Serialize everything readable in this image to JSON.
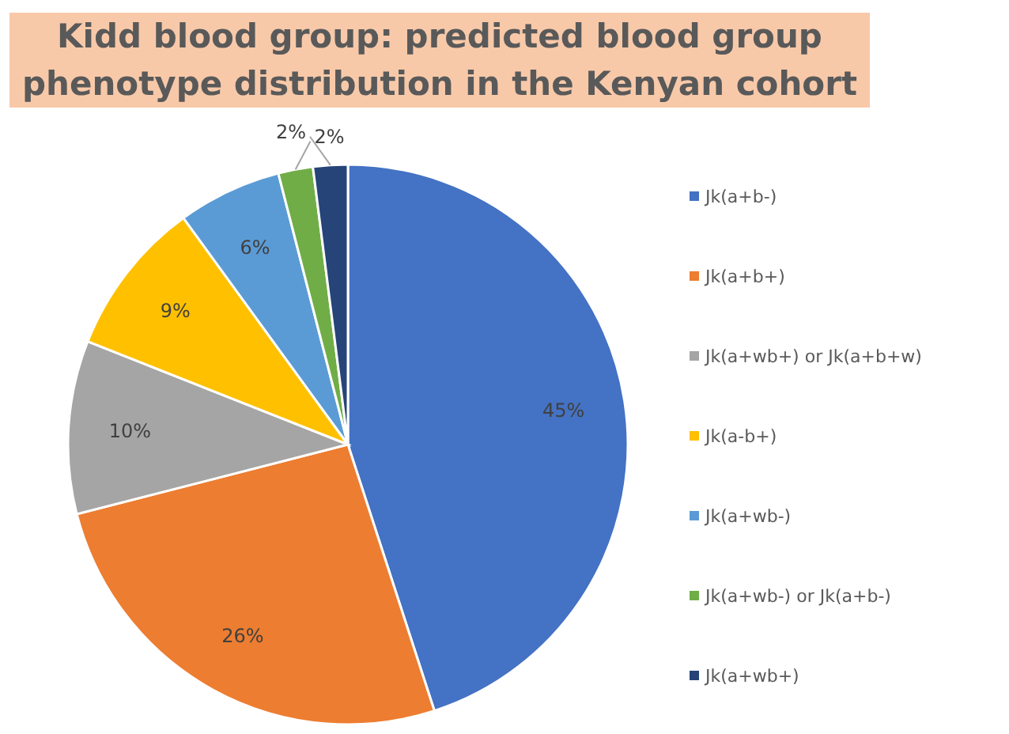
{
  "chart_data": {
    "type": "pie",
    "title": "Kidd blood group: predicted blood group phenotype distribution in the Kenyan cohort",
    "categories": [
      "Jk(a+b-)",
      "Jk(a+b+)",
      "Jk(a+wb+) or Jk(a+b+w)",
      "Jk(a-b+)",
      "Jk(a+wb-)",
      "Jk(a+wb-) or Jk(a+b-)",
      "Jk(a+wb+)"
    ],
    "values": [
      45,
      26,
      10,
      9,
      6,
      2,
      2
    ],
    "colors": [
      "#4472c4",
      "#ed7d31",
      "#a5a5a5",
      "#ffc000",
      "#5b9bd5",
      "#70ad47",
      "#264478"
    ],
    "value_labels": [
      "45%",
      "26%",
      "10%",
      "9%",
      "6%",
      "2%",
      "2%"
    ],
    "legend": "right"
  }
}
